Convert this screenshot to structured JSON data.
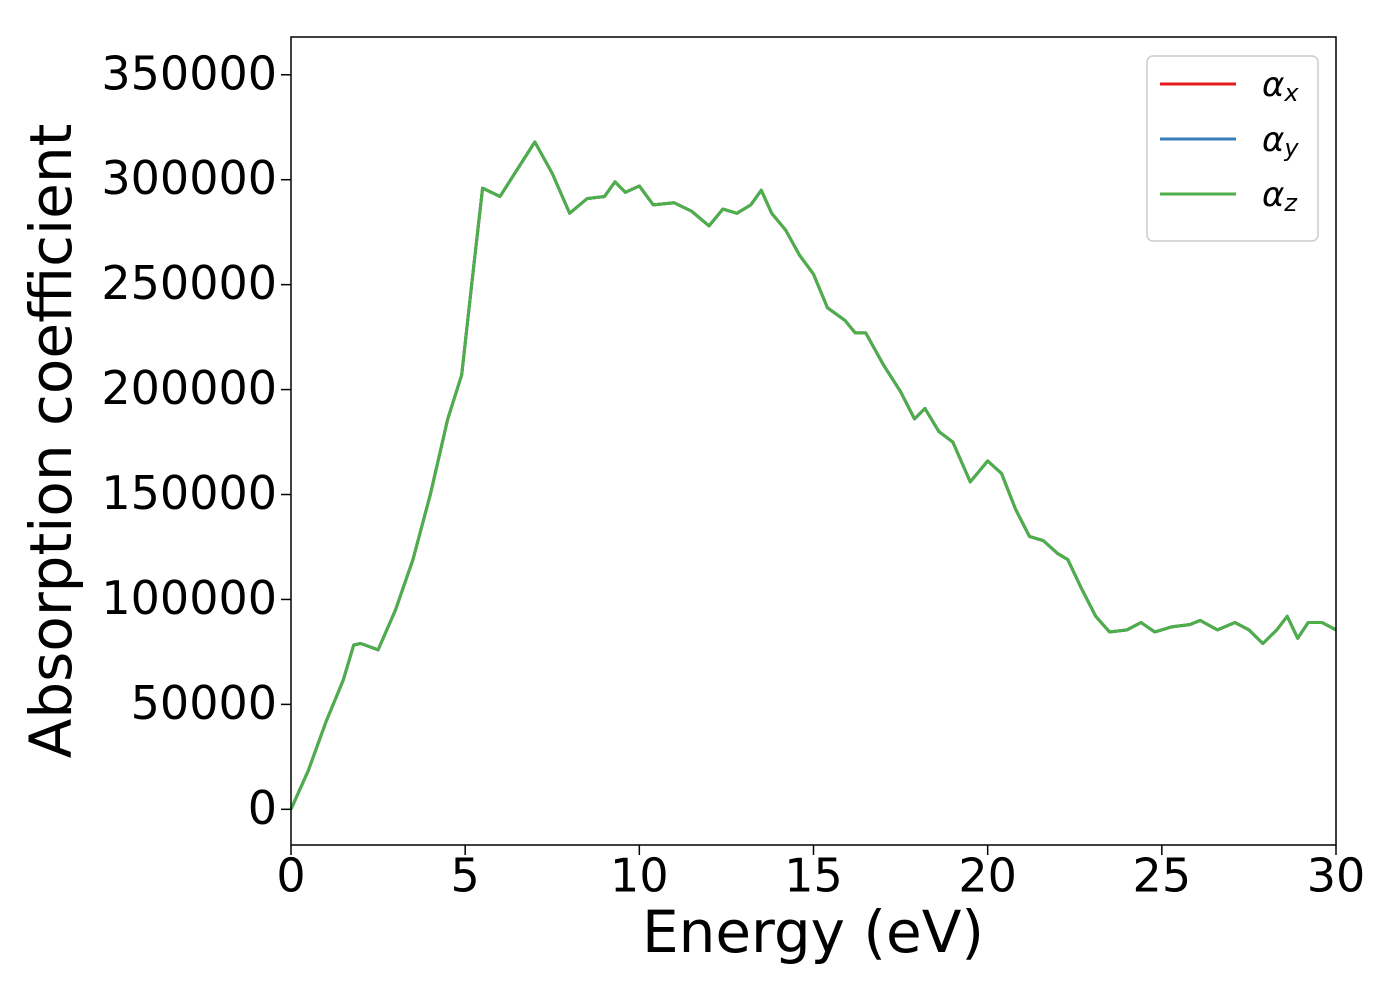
{
  "chart_data": {
    "type": "line",
    "xlabel": "Energy (eV)",
    "ylabel": "Absorption coefficient",
    "x": [
      0,
      0.5,
      1.0,
      1.5,
      1.8,
      2.0,
      2.5,
      3.0,
      3.5,
      4.0,
      4.5,
      4.9,
      5.2,
      5.5,
      6.0,
      6.5,
      7.0,
      7.5,
      8.0,
      8.5,
      9.0,
      9.3,
      9.6,
      10.0,
      10.4,
      11.0,
      11.5,
      12.0,
      12.4,
      12.8,
      13.2,
      13.5,
      13.8,
      14.2,
      14.6,
      15.0,
      15.4,
      15.9,
      16.2,
      16.5,
      17.0,
      17.5,
      17.9,
      18.2,
      18.6,
      19.0,
      19.5,
      20.0,
      20.4,
      20.8,
      21.2,
      21.6,
      22.0,
      22.3,
      22.7,
      23.1,
      23.5,
      24.0,
      24.4,
      24.8,
      25.3,
      25.8,
      26.1,
      26.6,
      27.1,
      27.5,
      27.9,
      28.3,
      28.6,
      28.9,
      29.2,
      29.6,
      30.0
    ],
    "series": [
      {
        "name": "αx",
        "color": "#e41a1c",
        "values": [
          0,
          18600,
          41500,
          61600,
          78300,
          79000,
          76000,
          95000,
          119000,
          150000,
          186000,
          207000,
          252000,
          296000,
          292000,
          305000,
          318000,
          303000,
          284000,
          291000,
          292000,
          299000,
          294000,
          297000,
          288000,
          289000,
          285000,
          278000,
          286000,
          284000,
          288000,
          295000,
          284000,
          276000,
          264000,
          255000,
          239000,
          233000,
          227000,
          227000,
          212000,
          199000,
          186000,
          191000,
          180000,
          175000,
          156000,
          166000,
          160000,
          143000,
          130000,
          128000,
          122000,
          119000,
          105000,
          92000,
          84500,
          85500,
          89000,
          84500,
          87000,
          88000,
          90000,
          85500,
          89000,
          85500,
          79000,
          85500,
          92000,
          81500,
          89000,
          89000,
          85500
        ]
      },
      {
        "name": "αy",
        "color": "#377eb8",
        "values": [
          0,
          18600,
          41500,
          61600,
          78300,
          79000,
          76000,
          95000,
          119000,
          150000,
          186000,
          207000,
          252000,
          296000,
          292000,
          305000,
          318000,
          303000,
          284000,
          291000,
          292000,
          299000,
          294000,
          297000,
          288000,
          289000,
          285000,
          278000,
          286000,
          284000,
          288000,
          295000,
          284000,
          276000,
          264000,
          255000,
          239000,
          233000,
          227000,
          227000,
          212000,
          199000,
          186000,
          191000,
          180000,
          175000,
          156000,
          166000,
          160000,
          143000,
          130000,
          128000,
          122000,
          119000,
          105000,
          92000,
          84500,
          85500,
          89000,
          84500,
          87000,
          88000,
          90000,
          85500,
          89000,
          85500,
          79000,
          85500,
          92000,
          81500,
          89000,
          89000,
          85500
        ]
      },
      {
        "name": "αz",
        "color": "#4daf4a",
        "values": [
          0,
          18600,
          41500,
          61600,
          78300,
          79000,
          76000,
          95000,
          119000,
          150000,
          186000,
          207000,
          252000,
          296000,
          292000,
          305000,
          318000,
          303000,
          284000,
          291000,
          292000,
          299000,
          294000,
          297000,
          288000,
          289000,
          285000,
          278000,
          286000,
          284000,
          288000,
          295000,
          284000,
          276000,
          264000,
          255000,
          239000,
          233000,
          227000,
          227000,
          212000,
          199000,
          186000,
          191000,
          180000,
          175000,
          156000,
          166000,
          160000,
          143000,
          130000,
          128000,
          122000,
          119000,
          105000,
          92000,
          84500,
          85500,
          89000,
          84500,
          87000,
          88000,
          90000,
          85500,
          89000,
          85500,
          79000,
          85500,
          92000,
          81500,
          89000,
          89000,
          85500
        ]
      }
    ],
    "xlim": [
      0,
      30
    ],
    "xticks": [
      0,
      5,
      10,
      15,
      20,
      25,
      30
    ],
    "ylim": [
      -17000,
      368000
    ],
    "yticks": [
      0,
      50000,
      100000,
      150000,
      200000,
      250000,
      300000,
      350000
    ],
    "grid": false,
    "legend": "upper right"
  }
}
